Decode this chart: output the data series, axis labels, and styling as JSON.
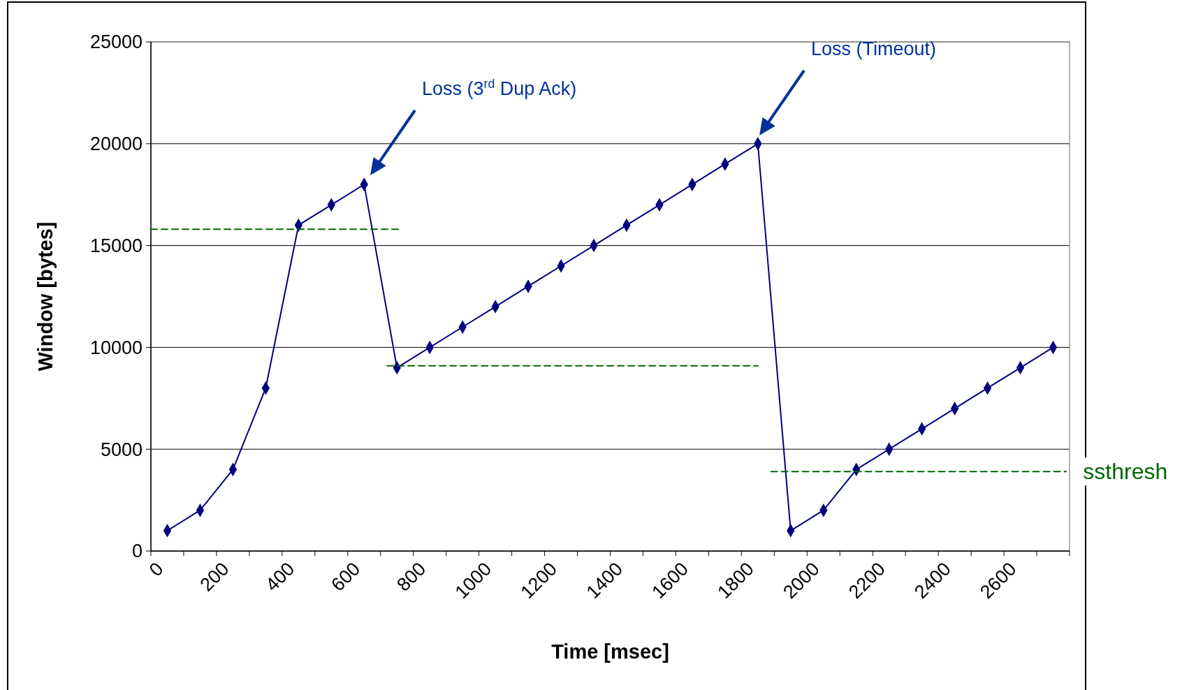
{
  "chart_data": {
    "type": "line",
    "xlabel": "Time [msec]",
    "ylabel": "Window [bytes]",
    "xlim": [
      0,
      2800
    ],
    "ylim": [
      0,
      25000
    ],
    "xticks": [
      0,
      {
        "value": 100,
        "label": null
      },
      200,
      {
        "value": 300,
        "label": null
      },
      400,
      {
        "value": 500,
        "label": null
      },
      600,
      {
        "value": 700,
        "label": null
      },
      800,
      {
        "value": 900,
        "label": null
      },
      1000,
      {
        "value": 1100,
        "label": null
      },
      1200,
      {
        "value": 1300,
        "label": null
      },
      1400,
      {
        "value": 1500,
        "label": null
      },
      1600,
      {
        "value": 1700,
        "label": null
      },
      1800,
      {
        "value": 1900,
        "label": null
      },
      2000,
      {
        "value": 2100,
        "label": null
      },
      2200,
      {
        "value": 2300,
        "label": null
      },
      2400,
      {
        "value": 2500,
        "label": null
      },
      2600,
      {
        "value": 2700,
        "label": null
      },
      {
        "value": 2800,
        "label": null
      }
    ],
    "yticks": [
      0,
      5000,
      10000,
      15000,
      20000,
      25000
    ],
    "grid": "y",
    "legend": false,
    "series": [
      {
        "color": "#000080",
        "marker": "diamond",
        "line_style": "solid",
        "x": [
          50,
          150,
          250,
          350,
          450,
          550,
          650,
          750,
          850,
          950,
          1050,
          1150,
          1250,
          1350,
          1450,
          1550,
          1650,
          1750,
          1850,
          1950,
          2050,
          2150,
          2250,
          2350,
          2450,
          2550,
          2650,
          2750
        ],
        "values": [
          1000,
          2000,
          4000,
          8000,
          16000,
          17000,
          18000,
          9000,
          10000,
          11000,
          12000,
          13000,
          14000,
          15000,
          16000,
          17000,
          18000,
          19000,
          20000,
          1000,
          2000,
          4000,
          5000,
          6000,
          7000,
          8000,
          9000,
          10000
        ]
      },
      {
        "name": "ssthresh",
        "color": "#006600",
        "marker": "none",
        "line_style": "dashed",
        "x": [
          0,
          760,
          740,
          720,
          1850,
          1870,
          1890,
          2790
        ],
        "values": [
          15800,
          15800,
          null,
          9100,
          9100,
          null,
          3900,
          3900
        ]
      }
    ],
    "annotations": [
      "Loss (3$^{rd}$ Dup Ack)",
      "Loss (Timeout)"
    ]
  }
}
